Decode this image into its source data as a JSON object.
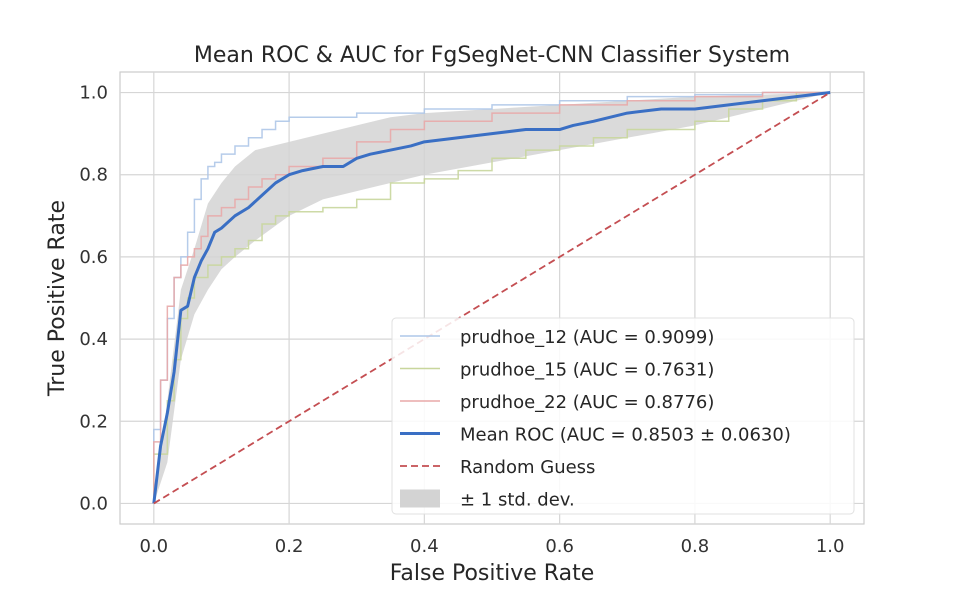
{
  "chart_data": {
    "type": "line",
    "title": "Mean ROC & AUC for FgSegNet-CNN Classifier System",
    "xlabel": "False Positive Rate",
    "ylabel": "True Positive Rate",
    "xlim": [
      -0.05,
      1.05
    ],
    "ylim": [
      -0.05,
      1.05
    ],
    "xticks": [
      0.0,
      0.2,
      0.4,
      0.6,
      0.8,
      1.0
    ],
    "yticks": [
      0.0,
      0.2,
      0.4,
      0.6,
      0.8,
      1.0
    ],
    "xtick_labels": [
      "0.0",
      "0.2",
      "0.4",
      "0.6",
      "0.8",
      "1.0"
    ],
    "ytick_labels": [
      "0.0",
      "0.2",
      "0.4",
      "0.6",
      "0.8",
      "1.0"
    ],
    "grid": true,
    "legend_position": "lower-right",
    "series": [
      {
        "name": "prudhoe_12 (AUC = 0.9099)",
        "color": "#aec7e8",
        "style": "step",
        "x": [
          0.0,
          0.01,
          0.02,
          0.03,
          0.04,
          0.05,
          0.06,
          0.07,
          0.08,
          0.09,
          0.1,
          0.12,
          0.14,
          0.16,
          0.18,
          0.2,
          0.25,
          0.3,
          0.35,
          0.4,
          0.5,
          0.6,
          0.7,
          0.8,
          0.9,
          1.0
        ],
        "y": [
          0.0,
          0.18,
          0.3,
          0.45,
          0.55,
          0.6,
          0.66,
          0.74,
          0.79,
          0.82,
          0.83,
          0.85,
          0.87,
          0.89,
          0.91,
          0.93,
          0.94,
          0.94,
          0.95,
          0.95,
          0.96,
          0.97,
          0.98,
          0.99,
          0.995,
          1.0
        ]
      },
      {
        "name": "prudhoe_15 (AUC = 0.7631)",
        "color": "#c8d69c",
        "style": "step",
        "x": [
          0.0,
          0.02,
          0.03,
          0.04,
          0.05,
          0.06,
          0.08,
          0.1,
          0.12,
          0.14,
          0.16,
          0.18,
          0.2,
          0.25,
          0.3,
          0.35,
          0.4,
          0.45,
          0.5,
          0.55,
          0.6,
          0.65,
          0.7,
          0.8,
          0.85,
          0.9,
          0.95,
          1.0
        ],
        "y": [
          0.0,
          0.12,
          0.25,
          0.35,
          0.45,
          0.5,
          0.55,
          0.58,
          0.6,
          0.62,
          0.64,
          0.68,
          0.7,
          0.71,
          0.72,
          0.74,
          0.78,
          0.79,
          0.81,
          0.84,
          0.86,
          0.87,
          0.89,
          0.91,
          0.93,
          0.96,
          0.98,
          1.0
        ]
      },
      {
        "name": "prudhoe_22 (AUC = 0.8776)",
        "color": "#e8a9a9",
        "style": "step",
        "x": [
          0.0,
          0.01,
          0.02,
          0.03,
          0.04,
          0.05,
          0.06,
          0.07,
          0.08,
          0.1,
          0.12,
          0.14,
          0.16,
          0.18,
          0.2,
          0.25,
          0.3,
          0.35,
          0.4,
          0.5,
          0.6,
          0.7,
          0.8,
          0.9,
          1.0
        ],
        "y": [
          0.0,
          0.15,
          0.3,
          0.48,
          0.55,
          0.58,
          0.6,
          0.62,
          0.65,
          0.7,
          0.72,
          0.74,
          0.77,
          0.79,
          0.8,
          0.82,
          0.84,
          0.88,
          0.91,
          0.93,
          0.95,
          0.97,
          0.98,
          0.99,
          1.0
        ]
      },
      {
        "name": "Mean ROC (AUC = 0.8503 ± 0.0630)",
        "color": "#3a6fc4",
        "style": "line",
        "x": [
          0.0,
          0.01,
          0.02,
          0.03,
          0.04,
          0.05,
          0.06,
          0.07,
          0.08,
          0.09,
          0.1,
          0.12,
          0.14,
          0.16,
          0.18,
          0.2,
          0.22,
          0.25,
          0.28,
          0.3,
          0.32,
          0.35,
          0.38,
          0.4,
          0.45,
          0.5,
          0.55,
          0.6,
          0.62,
          0.65,
          0.7,
          0.75,
          0.8,
          0.85,
          0.9,
          0.95,
          1.0
        ],
        "y": [
          0.0,
          0.14,
          0.22,
          0.32,
          0.47,
          0.48,
          0.55,
          0.59,
          0.62,
          0.66,
          0.67,
          0.7,
          0.72,
          0.75,
          0.78,
          0.8,
          0.81,
          0.82,
          0.82,
          0.84,
          0.85,
          0.86,
          0.87,
          0.88,
          0.89,
          0.9,
          0.91,
          0.91,
          0.92,
          0.93,
          0.95,
          0.96,
          0.96,
          0.97,
          0.98,
          0.99,
          1.0
        ]
      },
      {
        "name": "Random Guess",
        "color": "#c44e52",
        "style": "dashed",
        "x": [
          0.0,
          1.0
        ],
        "y": [
          0.0,
          1.0
        ]
      }
    ],
    "band": {
      "name": "± 1 std. dev.",
      "color": "#d3d3d3",
      "x": [
        0.0,
        0.02,
        0.04,
        0.06,
        0.08,
        0.1,
        0.12,
        0.15,
        0.2,
        0.25,
        0.3,
        0.35,
        0.4,
        0.5,
        0.6,
        0.7,
        0.8,
        0.9,
        1.0
      ],
      "upper": [
        0.0,
        0.25,
        0.52,
        0.62,
        0.73,
        0.78,
        0.82,
        0.86,
        0.88,
        0.9,
        0.92,
        0.94,
        0.95,
        0.96,
        0.97,
        0.98,
        0.99,
        0.995,
        1.0
      ],
      "lower": [
        0.0,
        0.1,
        0.35,
        0.46,
        0.52,
        0.57,
        0.6,
        0.64,
        0.7,
        0.74,
        0.76,
        0.78,
        0.8,
        0.83,
        0.86,
        0.89,
        0.92,
        0.96,
        1.0
      ]
    }
  }
}
